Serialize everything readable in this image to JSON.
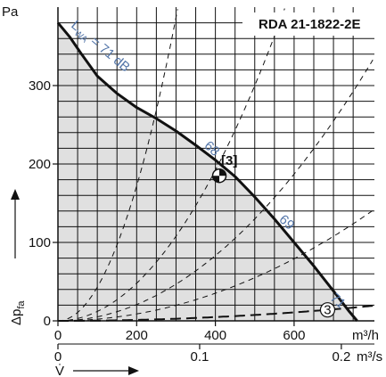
{
  "chart_data": {
    "type": "line",
    "title": "RDA 21-1822-2E",
    "y_unit": "Pa",
    "ylabel": "Δp",
    "ylabel_sub": "fa",
    "x_unit_primary": "m³/h",
    "x_unit_secondary": "m³/s",
    "xlabel": "V̇",
    "xlim": [
      0,
      800
    ],
    "ylim": [
      0,
      400
    ],
    "x_ticks": [
      0,
      200,
      400,
      600
    ],
    "x_tick_labels": [
      "0",
      "200",
      "400",
      "600"
    ],
    "x2_ticks": [
      0,
      0.1,
      0.2
    ],
    "x2_tick_labels": [
      "0",
      "0.1",
      "0.2"
    ],
    "y_ticks": [
      0,
      100,
      200,
      300
    ],
    "y_tick_labels": [
      "0",
      "100",
      "200",
      "300"
    ],
    "grid": true,
    "fan_curve": {
      "x": [
        0,
        30,
        60,
        100,
        150,
        200,
        250,
        300,
        350,
        400,
        450,
        500,
        550,
        600,
        650,
        700,
        740,
        760
      ],
      "y": [
        380,
        362,
        340,
        312,
        290,
        272,
        258,
        242,
        224,
        205,
        184,
        158,
        130,
        100,
        70,
        38,
        12,
        0
      ]
    },
    "system_curves_k": [
      0.0043,
      0.0012,
      0.00052,
      0.00022,
      3e-05
    ],
    "sound_levels": [
      {
        "label": "L",
        "sub": "WA",
        "rest": " = 71 dB",
        "x": 0,
        "y": 380
      },
      {
        "label": "68",
        "x": 370,
        "y": 222
      },
      {
        "label": "69",
        "x": 560,
        "y": 128
      },
      {
        "label": "71",
        "x": 690,
        "y": 28
      }
    ],
    "operating_point": {
      "label": "[3]",
      "x": 410,
      "y": 185
    },
    "circled_marker": {
      "label": "3",
      "x": 685,
      "y": 14
    }
  }
}
